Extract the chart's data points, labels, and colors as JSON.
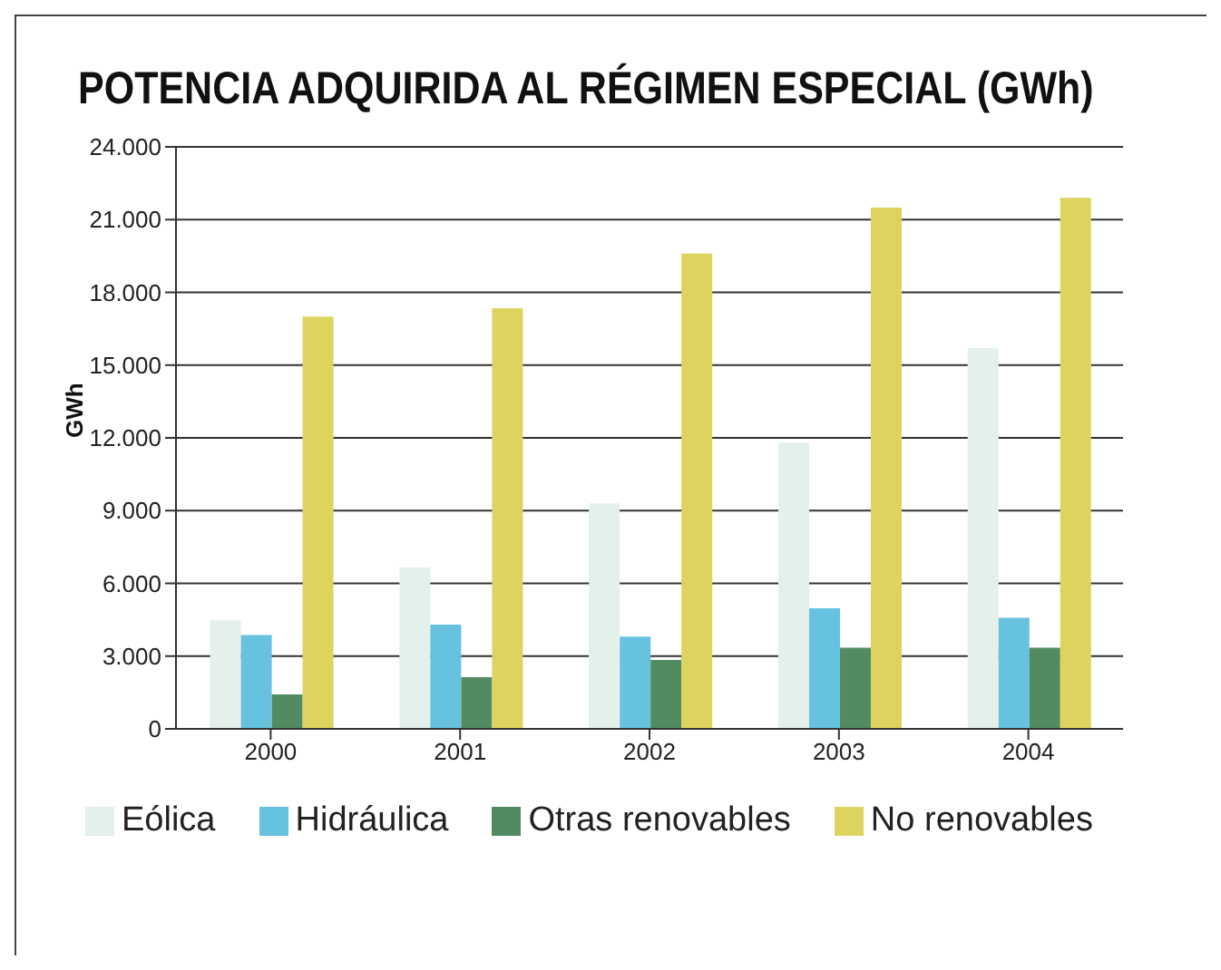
{
  "chart_data": {
    "type": "bar",
    "title": "POTENCIA ADQUIRIDA AL RÉGIMEN ESPECIAL (GWh)",
    "ylabel": "GWh",
    "categories": [
      "2000",
      "2001",
      "2002",
      "2003",
      "2004"
    ],
    "series": [
      {
        "name": "Eólica",
        "color": "#e4f0ea",
        "values": [
          4500,
          6650,
          9300,
          11800,
          15700
        ]
      },
      {
        "name": "Hidráulica",
        "color": "#66c2de",
        "values": [
          3870,
          4300,
          3800,
          4970,
          4580
        ]
      },
      {
        "name": "Otras renovables",
        "color": "#528b62",
        "values": [
          1420,
          2130,
          2840,
          3350,
          3350
        ]
      },
      {
        "name": "No renovables",
        "color": "#ddd35f",
        "values": [
          17000,
          17350,
          19600,
          21500,
          21900
        ]
      }
    ],
    "ylim": [
      0,
      24000
    ],
    "yticks": [
      {
        "value": 0,
        "label": "0"
      },
      {
        "value": 3000,
        "label": "3.000"
      },
      {
        "value": 6000,
        "label": "6.000"
      },
      {
        "value": 9000,
        "label": "9.000"
      },
      {
        "value": 12000,
        "label": "12.000"
      },
      {
        "value": 15000,
        "label": "15.000"
      },
      {
        "value": 18000,
        "label": "18.000"
      },
      {
        "value": 21000,
        "label": "21.000"
      },
      {
        "value": 24000,
        "label": "24.000"
      }
    ],
    "grid": "y",
    "legend": "bottom"
  }
}
